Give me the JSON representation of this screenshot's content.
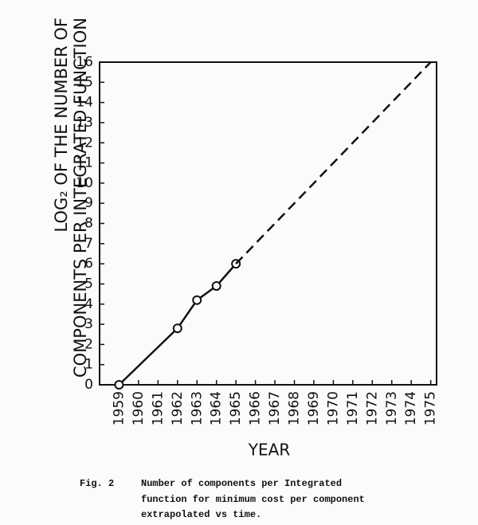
{
  "chart_data": {
    "type": "line",
    "ylabel": [
      "LOG₂ OF THE NUMBER OF",
      "COMPONENTS PER INTEGRATED FUNCTION"
    ],
    "xlabel": "YEAR",
    "x": [
      1959,
      1962,
      1963,
      1964,
      1965,
      1975
    ],
    "series": [
      {
        "color": "#111111",
        "dash": false,
        "markers": true,
        "values": [
          0,
          2.8,
          4.2,
          4.9,
          6,
          null
        ]
      },
      {
        "color": "#111111",
        "dash": true,
        "markers": false,
        "values": [
          null,
          null,
          null,
          null,
          6,
          16
        ]
      }
    ],
    "xlim": [
      1958,
      1975.3
    ],
    "xticks": [
      1959,
      1960,
      1961,
      1962,
      1963,
      1964,
      1965,
      1966,
      1967,
      1968,
      1969,
      1970,
      1971,
      1972,
      1973,
      1974,
      1975
    ],
    "ylim": [
      0,
      16
    ],
    "yticks": [
      0,
      1,
      2,
      3,
      4,
      5,
      6,
      7,
      8,
      9,
      10,
      11,
      12,
      13,
      14,
      15,
      16
    ],
    "caption_label": "Fig. 2",
    "caption": [
      "Number of components per Integrated",
      "function for minimum cost per component",
      "extrapolated vs time."
    ]
  }
}
